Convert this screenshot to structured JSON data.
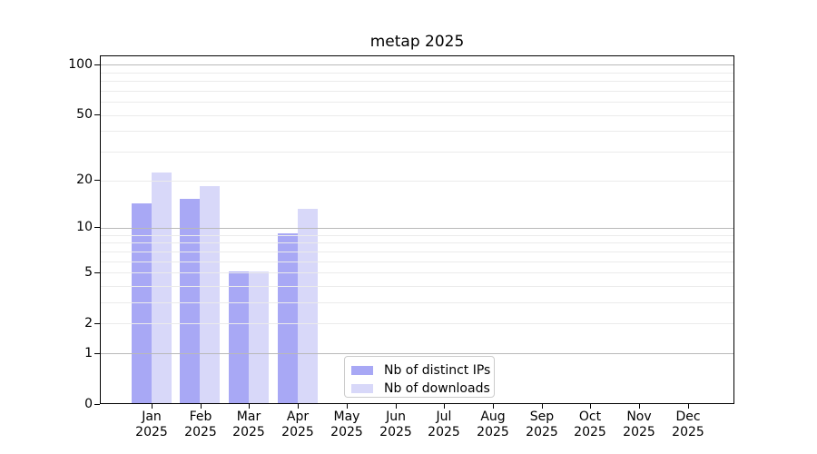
{
  "chart_data": {
    "type": "bar",
    "title": "metap 2025",
    "categories": [
      "Jan",
      "Feb",
      "Mar",
      "Apr",
      "May",
      "Jun",
      "Jul",
      "Aug",
      "Sep",
      "Oct",
      "Nov",
      "Dec"
    ],
    "x_year_label": "2025",
    "series": [
      {
        "name": "Nb of distinct IPs",
        "color": "#a8a8f5",
        "values": [
          14,
          15,
          5,
          9,
          0,
          0,
          0,
          0,
          0,
          0,
          0,
          0
        ]
      },
      {
        "name": "Nb of downloads",
        "color": "#d8d8f9",
        "values": [
          22,
          18,
          5,
          13,
          0,
          0,
          0,
          0,
          0,
          0,
          0,
          0
        ]
      }
    ],
    "y_axis": {
      "scale": "log10(value+1)",
      "tick_labels": [
        0,
        1,
        2,
        5,
        10,
        20,
        50,
        100
      ],
      "major_gridlines": [
        1,
        10,
        100
      ],
      "minor_gridlines": [
        2,
        3,
        4,
        5,
        6,
        7,
        8,
        9,
        20,
        30,
        40,
        50,
        60,
        70,
        80,
        90
      ],
      "ylim": [
        0,
        113
      ]
    },
    "legend": {
      "entries": [
        "Nb of distinct IPs",
        "Nb of downloads"
      ],
      "location": "inside-bottom-center-left"
    },
    "grid": true
  }
}
